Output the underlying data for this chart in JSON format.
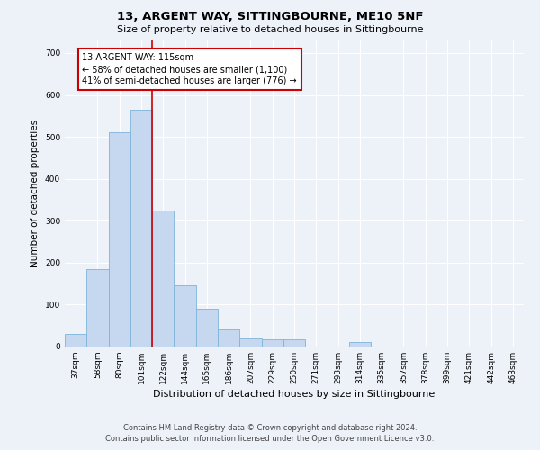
{
  "title1": "13, ARGENT WAY, SITTINGBOURNE, ME10 5NF",
  "title2": "Size of property relative to detached houses in Sittingbourne",
  "xlabel": "Distribution of detached houses by size in Sittingbourne",
  "ylabel": "Number of detached properties",
  "categories": [
    "37sqm",
    "58sqm",
    "80sqm",
    "101sqm",
    "122sqm",
    "144sqm",
    "165sqm",
    "186sqm",
    "207sqm",
    "229sqm",
    "250sqm",
    "271sqm",
    "293sqm",
    "314sqm",
    "335sqm",
    "357sqm",
    "378sqm",
    "399sqm",
    "421sqm",
    "442sqm",
    "463sqm"
  ],
  "values": [
    30,
    185,
    510,
    565,
    325,
    145,
    90,
    40,
    20,
    18,
    18,
    0,
    0,
    10,
    0,
    0,
    0,
    0,
    0,
    0,
    0
  ],
  "bar_color": "#c5d8f0",
  "bar_edge_color": "#7fb3d9",
  "annotation_text": "13 ARGENT WAY: 115sqm\n← 58% of detached houses are smaller (1,100)\n41% of semi-detached houses are larger (776) →",
  "annotation_box_color": "#ffffff",
  "annotation_box_edge_color": "#cc0000",
  "vline_color": "#cc0000",
  "footer1": "Contains HM Land Registry data © Crown copyright and database right 2024.",
  "footer2": "Contains public sector information licensed under the Open Government Licence v3.0.",
  "bg_color": "#edf2f9",
  "plot_bg_color": "#edf2f9",
  "grid_color": "#ffffff",
  "ylim": [
    0,
    730
  ],
  "yticks": [
    0,
    100,
    200,
    300,
    400,
    500,
    600,
    700
  ],
  "vline_x": 3.5,
  "title1_fontsize": 9.5,
  "title2_fontsize": 8,
  "ylabel_fontsize": 7.5,
  "xlabel_fontsize": 8,
  "tick_fontsize": 6.5,
  "annot_fontsize": 7,
  "footer_fontsize": 6
}
